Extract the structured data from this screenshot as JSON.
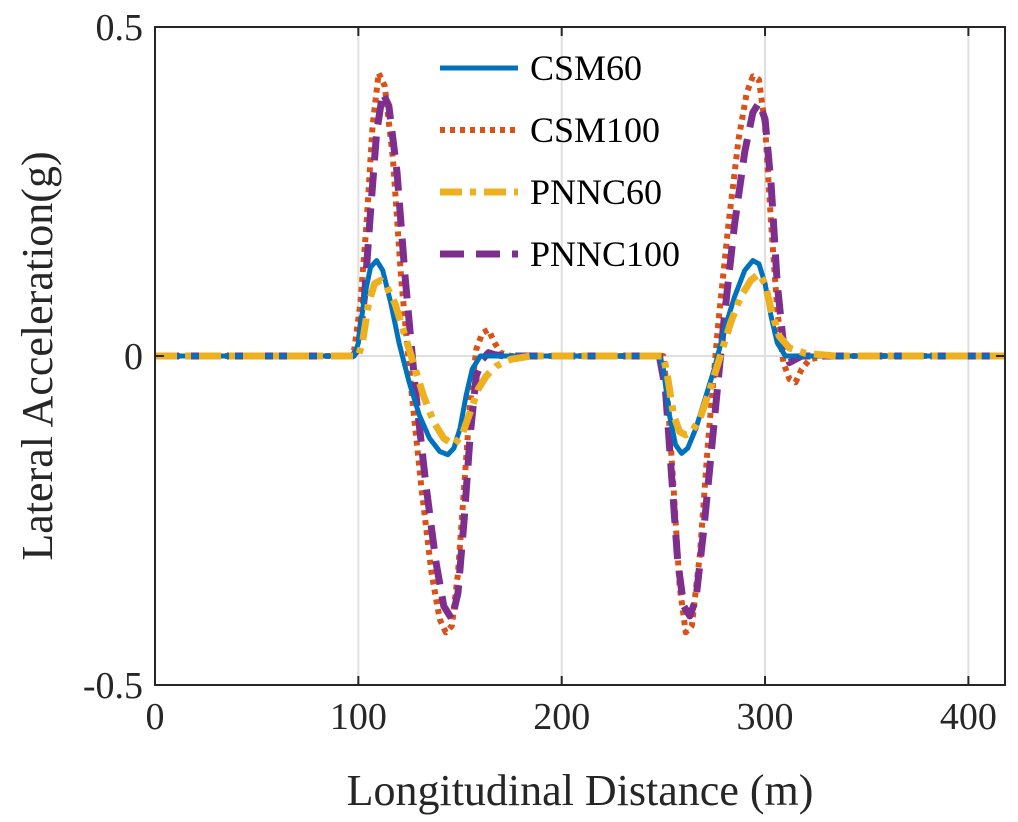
{
  "chart_data": {
    "type": "line",
    "title": "",
    "xlabel": "Longitudinal Distance (m)",
    "ylabel": "Lateral Acceleration(g)",
    "xlim": [
      0,
      418
    ],
    "ylim": [
      -0.5,
      0.5
    ],
    "x_ticks": [
      0,
      100,
      200,
      300,
      400
    ],
    "x_tick_labels": [
      "0",
      "100",
      "200",
      "300",
      "400"
    ],
    "y_ticks": [
      -0.5,
      0,
      0.5
    ],
    "y_tick_labels": [
      "-0.5",
      "0",
      "0.5"
    ],
    "grid": true,
    "legend_position": "top-center",
    "series": [
      {
        "name": "CSM60",
        "color": "#0072BD",
        "style": "solid",
        "x": [
          0,
          98,
          100,
          103,
          106,
          109,
          112,
          116,
          120,
          125,
          130,
          135,
          140,
          144,
          147,
          150,
          153,
          156,
          160,
          170,
          200,
          248,
          250,
          253,
          256,
          259,
          262,
          266,
          270,
          275,
          280,
          285,
          290,
          294,
          297,
          300,
          303,
          306,
          310,
          320,
          360,
          418
        ],
        "values": [
          0,
          0,
          0.02,
          0.09,
          0.135,
          0.145,
          0.13,
          0.08,
          0.02,
          -0.04,
          -0.09,
          -0.125,
          -0.145,
          -0.15,
          -0.14,
          -0.11,
          -0.06,
          -0.02,
          0,
          0,
          0,
          0,
          -0.02,
          -0.09,
          -0.135,
          -0.148,
          -0.14,
          -0.11,
          -0.07,
          -0.02,
          0.04,
          0.09,
          0.13,
          0.145,
          0.14,
          0.11,
          0.06,
          0.02,
          0,
          0,
          0,
          0
        ]
      },
      {
        "name": "CSM100",
        "color": "#D95319",
        "style": "dotted",
        "x": [
          0,
          95,
          98,
          101,
          104,
          107,
          110,
          113,
          117,
          121,
          126,
          131,
          136,
          140,
          143,
          146,
          149,
          152,
          155,
          158,
          161,
          164,
          167,
          170,
          175,
          250,
          252,
          255,
          258,
          261,
          264,
          268,
          272,
          277,
          282,
          287,
          291,
          294,
          297,
          300,
          303,
          306,
          309,
          312,
          315,
          318,
          322,
          330,
          418
        ],
        "values": [
          0,
          0,
          0.01,
          0.08,
          0.2,
          0.35,
          0.43,
          0.41,
          0.3,
          0.12,
          -0.05,
          -0.2,
          -0.33,
          -0.4,
          -0.42,
          -0.41,
          -0.33,
          -0.2,
          -0.07,
          0.01,
          0.035,
          0.04,
          0.02,
          0.005,
          0,
          0,
          -0.06,
          -0.2,
          -0.35,
          -0.42,
          -0.41,
          -0.3,
          -0.13,
          0.05,
          0.2,
          0.33,
          0.4,
          0.425,
          0.42,
          0.35,
          0.2,
          0.07,
          -0.01,
          -0.035,
          -0.04,
          -0.02,
          -0.005,
          0,
          0
        ]
      },
      {
        "name": "PNNC60",
        "color": "#EDB120",
        "style": "dash-dot",
        "x": [
          0,
          100,
          102,
          105,
          108,
          111,
          114,
          118,
          122,
          127,
          132,
          137,
          142,
          147,
          151,
          155,
          159,
          163,
          168,
          175,
          185,
          200,
          250,
          252,
          255,
          258,
          261,
          264,
          268,
          273,
          278,
          283,
          288,
          293,
          297,
          300,
          303,
          307,
          312,
          320,
          335,
          418
        ],
        "values": [
          0,
          0,
          0.02,
          0.08,
          0.11,
          0.115,
          0.105,
          0.08,
          0.04,
          -0.01,
          -0.06,
          -0.1,
          -0.125,
          -0.135,
          -0.12,
          -0.085,
          -0.05,
          -0.03,
          -0.015,
          -0.005,
          0,
          0,
          0,
          -0.03,
          -0.09,
          -0.115,
          -0.12,
          -0.115,
          -0.095,
          -0.05,
          0,
          0.05,
          0.09,
          0.115,
          0.125,
          0.11,
          0.07,
          0.03,
          0.012,
          0.004,
          0,
          0
        ]
      },
      {
        "name": "PNNC100",
        "color": "#7E2F8E",
        "style": "dashed",
        "x": [
          0,
          97,
          100,
          103,
          106,
          109,
          112,
          115,
          119,
          123,
          128,
          133,
          138,
          142,
          146,
          149,
          152,
          155,
          158,
          161,
          164,
          167,
          172,
          180,
          248,
          251,
          254,
          257,
          260,
          263,
          266,
          270,
          275,
          280,
          285,
          290,
          294,
          297,
          300,
          303,
          306,
          309,
          312,
          315,
          318,
          322,
          330,
          418
        ],
        "values": [
          0,
          0,
          0.01,
          0.09,
          0.22,
          0.34,
          0.4,
          0.38,
          0.28,
          0.12,
          -0.05,
          -0.19,
          -0.31,
          -0.38,
          -0.4,
          -0.36,
          -0.25,
          -0.12,
          -0.03,
          -0.005,
          0.005,
          0.002,
          0,
          0,
          0,
          -0.05,
          -0.18,
          -0.31,
          -0.38,
          -0.395,
          -0.37,
          -0.26,
          -0.1,
          0.06,
          0.2,
          0.31,
          0.37,
          0.385,
          0.36,
          0.26,
          0.11,
          0.02,
          -0.01,
          -0.005,
          0,
          0,
          0,
          0
        ]
      }
    ]
  }
}
